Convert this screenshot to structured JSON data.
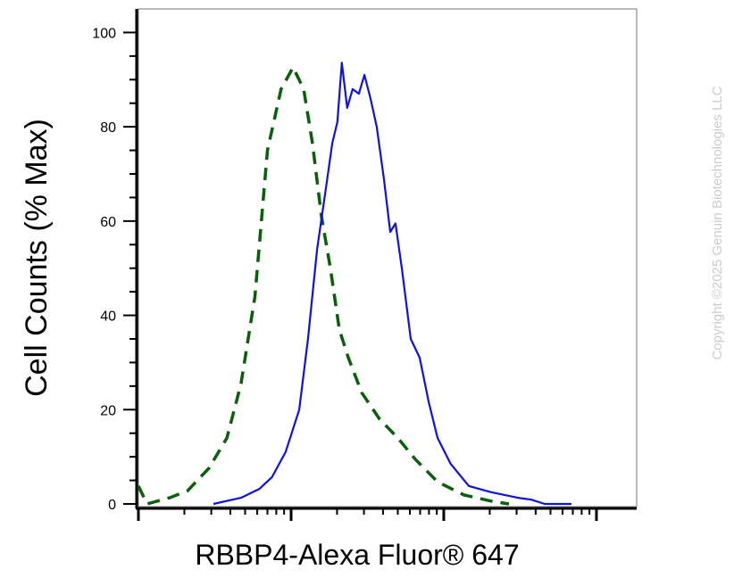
{
  "chart_data": {
    "type": "line",
    "x_label": "RBBP4-Alexa Fluor® 647",
    "y_label": "Cell Counts (% Max)",
    "copyright": "Copyright ©2025 Genuin Biotechnologies LLC",
    "x_log": true,
    "xlim": [
      1,
      1834
    ],
    "xticks": [
      1,
      10,
      100,
      1000
    ],
    "xminorticks": [
      2,
      3,
      4,
      5,
      6,
      7,
      8,
      9,
      20,
      30,
      40,
      50,
      60,
      70,
      80,
      90,
      200,
      300,
      400,
      500,
      600,
      700,
      800,
      900
    ],
    "ylim": [
      0,
      105
    ],
    "yticks": [
      0,
      20,
      40,
      60,
      80,
      100
    ],
    "yminorticks": [
      5,
      10,
      15,
      25,
      30,
      35,
      45,
      50,
      55,
      65,
      70,
      75,
      85,
      90,
      95
    ],
    "series": [
      {
        "color": "#0b5e0b",
        "dashed": true,
        "x": [
          1,
          1.14,
          1.6,
          2.1,
          2.9,
          3.8,
          4.7,
          5.8,
          7.0,
          8.6,
          10.3,
          12.1,
          13.8,
          15.8,
          18.1,
          20.7,
          23.7,
          29,
          38,
          50,
          65,
          91,
          136,
          204,
          267
        ],
        "values": [
          3.8,
          0,
          1.3,
          2.8,
          7.6,
          14,
          25.5,
          44,
          75,
          88,
          92.6,
          88,
          76.5,
          61,
          50,
          37,
          31,
          23.6,
          18,
          14,
          9.5,
          4.7,
          1.9,
          0.6,
          0
        ]
      },
      {
        "color": "#1010e0",
        "dashed": false,
        "x": [
          3.1,
          4.7,
          6.2,
          7.5,
          9.2,
          11.3,
          12.9,
          14.8,
          16.9,
          18.6,
          20.1,
          21.5,
          23.3,
          25.3,
          27.8,
          30.2,
          33.1,
          36.4,
          40.5,
          44.6,
          48.3,
          53.1,
          60.8,
          69.5,
          79.6,
          91,
          111,
          146,
          204,
          306,
          374,
          458,
          686
        ],
        "values": [
          0,
          1.3,
          3.2,
          5.7,
          11,
          20,
          35,
          54,
          67,
          76.5,
          81,
          93.6,
          84,
          88,
          87,
          91,
          86,
          80,
          69,
          57.7,
          59.5,
          50,
          35,
          31,
          21.7,
          14,
          8.5,
          3.8,
          2.5,
          1.3,
          0.9,
          0,
          0
        ]
      }
    ]
  }
}
